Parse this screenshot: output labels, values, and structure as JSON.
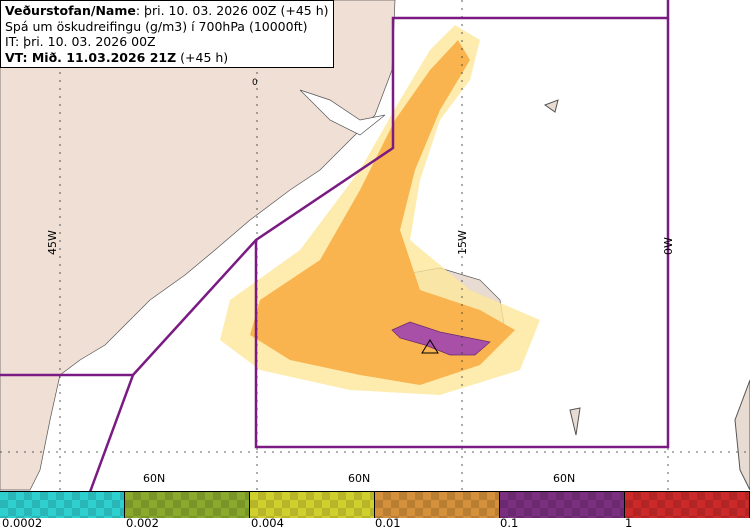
{
  "header": {
    "line1_bold": "Veðurstofan/Name",
    "line1_rest": ": þri. 10. 03. 2026 00Z (+45 h)",
    "line2": "Spá um öskudreifingu (g/m3) í 700hPa (10000ft)",
    "line3": "IT: þri. 10. 03. 2026 00Z",
    "line4_bold": "VT: Mið. 11.03.2026 21Z",
    "line4_rest": " (+45 h)"
  },
  "grid_labels": {
    "lon": [
      "45W",
      "15W",
      "0W"
    ],
    "lat": [
      "60N",
      "60N",
      "60N"
    ],
    "contour": "0"
  },
  "legend": {
    "colors": [
      "#2ecfcf",
      "#8aaa2e",
      "#cfcf2e",
      "#d4903a",
      "#7a2f7f",
      "#cc2a2a"
    ],
    "labels": [
      "0.0002",
      "0.002",
      "0.004",
      "0.01",
      "0.1",
      "1"
    ]
  }
}
